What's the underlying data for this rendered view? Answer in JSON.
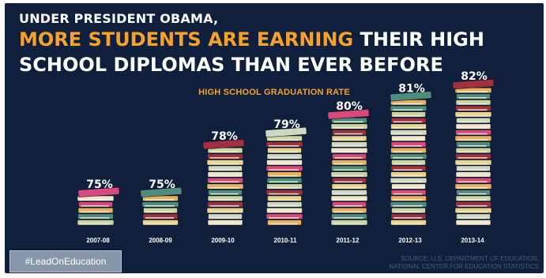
{
  "header": {
    "line1": "UNDER PRESIDENT OBAMA,",
    "line2_highlight": "MORE STUDENTS ARE EARNING",
    "line2_rest": "THEIR HIGH",
    "line3": "SCHOOL DIPLOMAS THAN EVER BEFORE"
  },
  "chart_data": {
    "type": "bar",
    "title": "HIGH SCHOOL GRADUATION RATE",
    "categories": [
      "2007-08",
      "2008-09",
      "2009-10",
      "2010-11",
      "2011-12",
      "2012-13",
      "2013-14"
    ],
    "values": [
      75,
      75,
      78,
      79,
      80,
      81,
      82
    ],
    "value_labels": [
      "75%",
      "75%",
      "78%",
      "79%",
      "80%",
      "81%",
      "82%"
    ],
    "unit": "%",
    "grid": false
  },
  "footer": {
    "hashtag": "#LeadOnEducation",
    "source_line1": "SOURCE: U.S. DEPARTMENT OF EDUCATION,",
    "source_line2": "NATIONAL CENTER FOR EDUCATION STATISTICS"
  },
  "colors": {
    "background": "#101f3b",
    "accent": "#f6a22a",
    "book_colors": [
      "#c9d6a0",
      "#d94a7a",
      "#e8d48a",
      "#4f8c7a",
      "#f0e6c8",
      "#a03040",
      "#e9b15a",
      "#cfd9c0"
    ]
  }
}
